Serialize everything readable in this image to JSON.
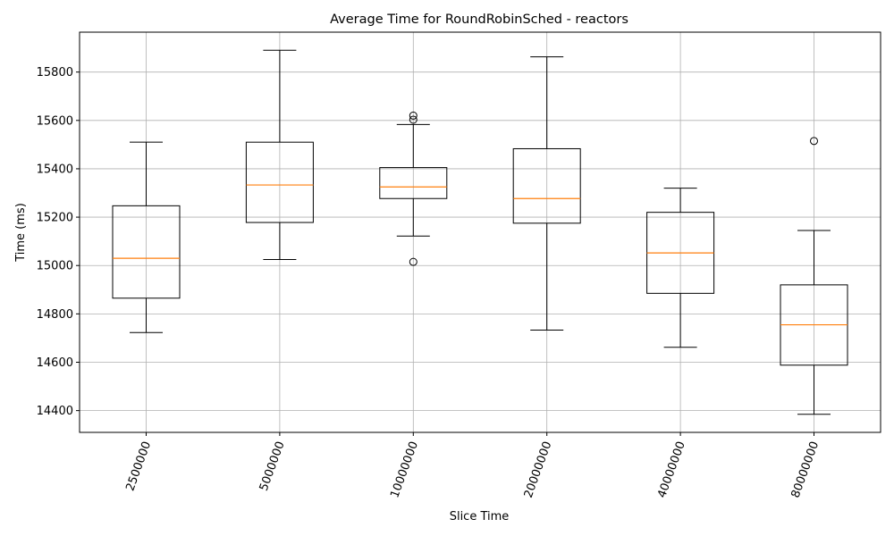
{
  "chart_data": {
    "type": "box",
    "title": "Average Time for RoundRobinSched - reactors",
    "xlabel": "Slice Time",
    "ylabel": "Time (ms)",
    "categories": [
      "2500000",
      "5000000",
      "10000000",
      "20000000",
      "40000000",
      "80000000"
    ],
    "ylim": [
      14310,
      15965
    ],
    "yticks": [
      14400,
      14600,
      14800,
      15000,
      15200,
      15400,
      15600,
      15800
    ],
    "grid": true,
    "boxes": [
      {
        "category": "2500000",
        "whisker_low": 14723,
        "q1": 14865,
        "median": 15030,
        "q3": 15247,
        "whisker_high": 15510,
        "outliers": []
      },
      {
        "category": "5000000",
        "whisker_low": 15025,
        "q1": 15178,
        "median": 15333,
        "q3": 15510,
        "whisker_high": 15890,
        "outliers": []
      },
      {
        "category": "10000000",
        "whisker_low": 15122,
        "q1": 15277,
        "median": 15325,
        "q3": 15405,
        "whisker_high": 15583,
        "outliers": [
          15015,
          15603,
          15620
        ]
      },
      {
        "category": "20000000",
        "whisker_low": 14733,
        "q1": 15175,
        "median": 15277,
        "q3": 15483,
        "whisker_high": 15863,
        "outliers": []
      },
      {
        "category": "40000000",
        "whisker_low": 14662,
        "q1": 14885,
        "median": 15052,
        "q3": 15220,
        "whisker_high": 15320,
        "outliers": []
      },
      {
        "category": "80000000",
        "whisker_low": 14385,
        "q1": 14588,
        "median": 14755,
        "q3": 14920,
        "whisker_high": 15145,
        "outliers": [
          15515
        ]
      }
    ],
    "colors": {
      "box": "#000000",
      "median": "#ff7f0e",
      "grid": "#b0b0b0"
    }
  }
}
